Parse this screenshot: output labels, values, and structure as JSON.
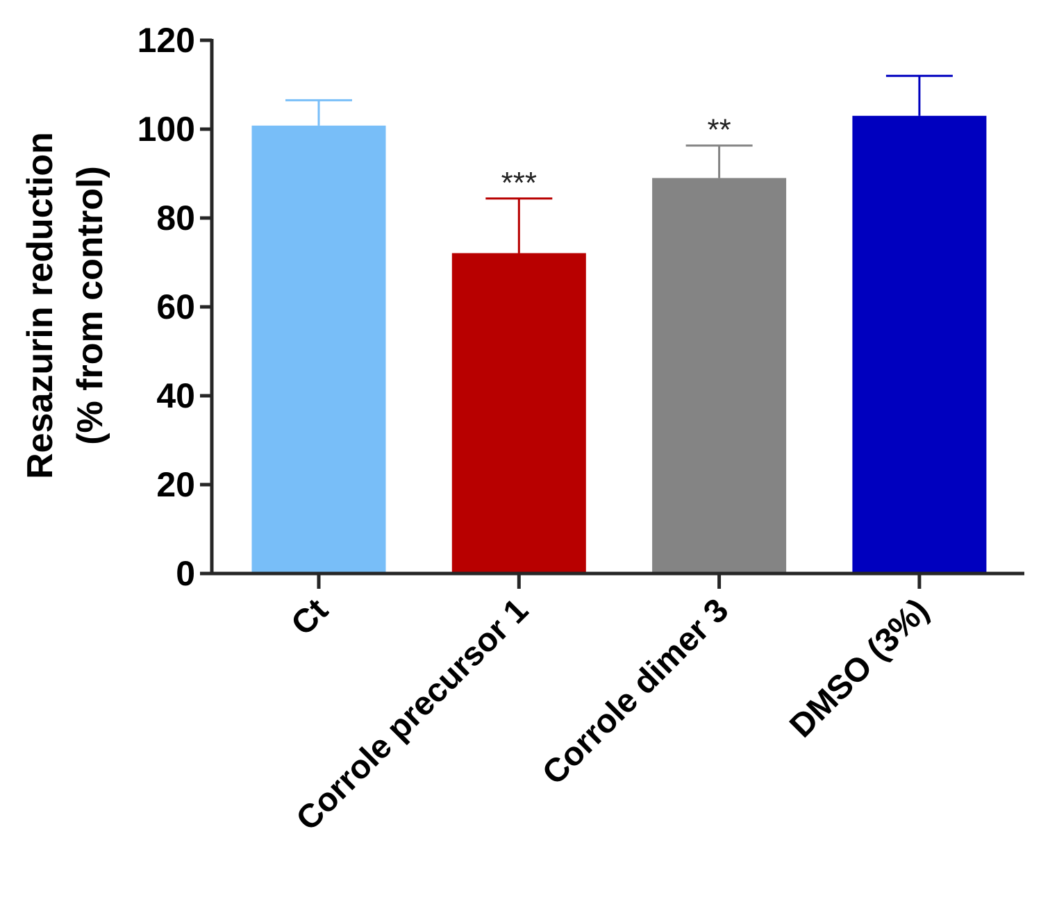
{
  "chart_data": {
    "type": "bar",
    "title": "",
    "xlabel": "",
    "ylabel_line1": "Resazurin reduction",
    "ylabel_line2": "(% from control)",
    "ylim": [
      0,
      120
    ],
    "yticks": [
      "0",
      "20",
      "40",
      "60",
      "80",
      "100",
      "120"
    ],
    "categories": [
      "Ct",
      "Corrole precursor 1",
      "Corrole dimer 3",
      "DMSO (3%)"
    ],
    "values": [
      100.8,
      72.1,
      89.0,
      103.0
    ],
    "errors": [
      5.7,
      12.3,
      7.3,
      9.0
    ],
    "significance": [
      "",
      "***",
      "**",
      ""
    ],
    "colors": [
      "#78BEF8",
      "#B80000",
      "#848484",
      "#0000BF"
    ],
    "axis_color": "#262626"
  }
}
